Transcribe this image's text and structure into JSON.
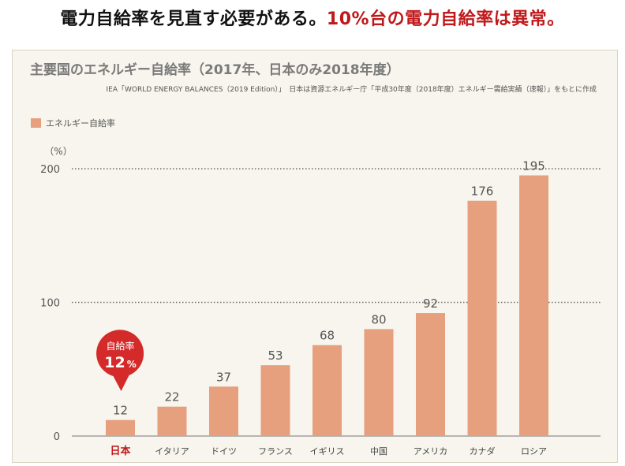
{
  "headline": {
    "part1": "電力自給率を見直す必要がある。",
    "part2": "10%台の電力自給率は異常。"
  },
  "colors": {
    "bar": "#e6a07e",
    "highlight": "#c0191b",
    "bubble": "#d42a2a",
    "panel_bg": "#f7f5ed"
  },
  "chart_data": {
    "type": "bar",
    "title": "主要国のエネルギー自給率（2017年、日本のみ2018年度）",
    "source": "IEA「WORLD ENERGY BALANCES（2019 Edition）」　日本は資源エネルギー庁「平成30年度（2018年度）エネルギー需給実績（速報）」をもとに作成",
    "legend": [
      "エネルギー自給率"
    ],
    "legend_position": "top-left",
    "ylabel": "（%）",
    "ylim": [
      0,
      200
    ],
    "yticks": [
      0,
      100,
      200
    ],
    "gridlines": [
      100,
      200
    ],
    "categories": [
      "日本",
      "イタリア",
      "ドイツ",
      "フランス",
      "イギリス",
      "中国",
      "アメリカ",
      "カナダ",
      "ロシア"
    ],
    "series": [
      {
        "name": "エネルギー自給率",
        "values": [
          12,
          22,
          37,
          53,
          68,
          80,
          92,
          176,
          195
        ]
      }
    ],
    "highlight_category": "日本",
    "callout": {
      "line1": "自給率",
      "value": "12",
      "unit": "%"
    }
  }
}
